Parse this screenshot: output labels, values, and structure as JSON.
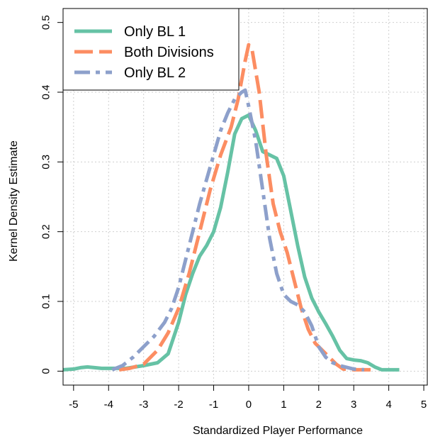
{
  "chart_data": {
    "type": "line",
    "xlabel": "Standardized Player Performance",
    "ylabel": "Kernel Density Estimate",
    "xlim": [
      -5.3,
      5.1
    ],
    "ylim": [
      -0.02,
      0.52
    ],
    "x_ticks": [
      -5,
      -4,
      -3,
      -2,
      -1,
      0,
      1,
      2,
      3,
      4,
      5
    ],
    "y_ticks": [
      0,
      0.1,
      0.2,
      0.3,
      0.4,
      0.5
    ],
    "grid": true,
    "legend_position": "top-left",
    "series": [
      {
        "name": "Only BL 1",
        "color": "#66c2a5",
        "dash": "solid",
        "x": [
          -5.3,
          -5.0,
          -4.8,
          -4.6,
          -4.4,
          -4.2,
          -4.0,
          -3.8,
          -3.5,
          -3.0,
          -2.6,
          -2.3,
          -2.0,
          -1.8,
          -1.6,
          -1.4,
          -1.2,
          -1.0,
          -0.8,
          -0.6,
          -0.4,
          -0.2,
          0.0,
          0.2,
          0.4,
          0.6,
          0.8,
          1.0,
          1.2,
          1.4,
          1.6,
          1.8,
          2.0,
          2.2,
          2.4,
          2.6,
          2.8,
          3.0,
          3.2,
          3.4,
          3.6,
          3.8,
          4.0,
          4.3
        ],
        "y": [
          0.002,
          0.003,
          0.005,
          0.006,
          0.005,
          0.004,
          0.004,
          0.004,
          0.004,
          0.008,
          0.012,
          0.025,
          0.07,
          0.11,
          0.14,
          0.165,
          0.18,
          0.2,
          0.235,
          0.285,
          0.34,
          0.362,
          0.367,
          0.345,
          0.315,
          0.31,
          0.305,
          0.28,
          0.23,
          0.18,
          0.135,
          0.105,
          0.085,
          0.068,
          0.05,
          0.03,
          0.018,
          0.016,
          0.015,
          0.012,
          0.006,
          0.002,
          0.002,
          0.002
        ]
      },
      {
        "name": "Both Divisions",
        "color": "#fc8d62",
        "dash": "long-dash",
        "x": [
          -3.7,
          -3.4,
          -3.0,
          -2.6,
          -2.3,
          -2.0,
          -1.7,
          -1.4,
          -1.1,
          -0.8,
          -0.5,
          -0.3,
          -0.1,
          0.0,
          0.1,
          0.3,
          0.5,
          0.7,
          0.9,
          1.1,
          1.3,
          1.5,
          1.7,
          1.9,
          2.1,
          2.3,
          2.5,
          2.7,
          3.0,
          3.3,
          3.5
        ],
        "y": [
          0.002,
          0.004,
          0.01,
          0.03,
          0.055,
          0.09,
          0.14,
          0.2,
          0.26,
          0.31,
          0.35,
          0.39,
          0.445,
          0.468,
          0.46,
          0.4,
          0.31,
          0.24,
          0.2,
          0.17,
          0.13,
          0.09,
          0.06,
          0.04,
          0.03,
          0.02,
          0.01,
          0.003,
          0.002,
          0.002,
          0.002
        ]
      },
      {
        "name": "Only BL 2",
        "color": "#8da0cb",
        "dash": "dash-dot",
        "x": [
          -3.9,
          -3.6,
          -3.3,
          -3.0,
          -2.7,
          -2.4,
          -2.2,
          -2.0,
          -1.8,
          -1.6,
          -1.4,
          -1.2,
          -1.0,
          -0.8,
          -0.6,
          -0.4,
          -0.2,
          -0.1,
          0.0,
          0.2,
          0.4,
          0.6,
          0.8,
          1.0,
          1.2,
          1.4,
          1.6,
          1.8,
          2.0,
          2.2,
          2.4,
          2.6,
          3.0,
          3.3
        ],
        "y": [
          0.002,
          0.008,
          0.02,
          0.035,
          0.05,
          0.07,
          0.09,
          0.12,
          0.16,
          0.2,
          0.24,
          0.275,
          0.31,
          0.345,
          0.37,
          0.39,
          0.4,
          0.403,
          0.38,
          0.33,
          0.26,
          0.19,
          0.14,
          0.11,
          0.1,
          0.095,
          0.085,
          0.065,
          0.035,
          0.02,
          0.012,
          0.008,
          0.003,
          0.002
        ]
      }
    ]
  }
}
